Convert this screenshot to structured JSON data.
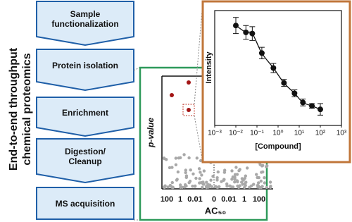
{
  "title_lines": [
    "End-to-end throughput",
    "chemical proteomics"
  ],
  "workflow": {
    "steps": [
      "Sample functionalization",
      "Protein isolation",
      "Enrichment",
      "Digestion/ Cleanup",
      "MS acquisition"
    ]
  },
  "volcano": {
    "y_label": "p-value",
    "x_label": "AC₅₀",
    "x_tick_labels": [
      "100",
      "1",
      "0.01",
      "0",
      "0.01",
      "1",
      "100"
    ]
  },
  "chart_data": {
    "type": "scatter",
    "x_label": "[Compound]",
    "y_label": "Intensity",
    "x": [
      0.01,
      0.03,
      0.06,
      0.17,
      0.6,
      1.9,
      6,
      15,
      40,
      100
    ],
    "values": [
      0.87,
      0.81,
      0.8,
      0.63,
      0.5,
      0.37,
      0.28,
      0.2,
      0.17,
      0.14
    ],
    "errors": [
      0.07,
      0.06,
      0.06,
      0.05,
      0.04,
      0.03,
      0.03,
      0.03,
      0.02,
      0.05
    ],
    "color": "#111111",
    "xscale": "log",
    "xlim": [
      0.001,
      1000
    ],
    "ylim": [
      0,
      1
    ],
    "xticks": [
      {
        "value": 0.001,
        "label": "10⁻³"
      },
      {
        "value": 0.01,
        "label": "10⁻²"
      },
      {
        "value": 0.1,
        "label": "10⁻¹"
      },
      {
        "value": 1,
        "label": "10⁰"
      },
      {
        "value": 10,
        "label": "10¹"
      },
      {
        "value": 100,
        "label": "10²"
      },
      {
        "value": 1000,
        "label": "10³"
      }
    ]
  }
}
